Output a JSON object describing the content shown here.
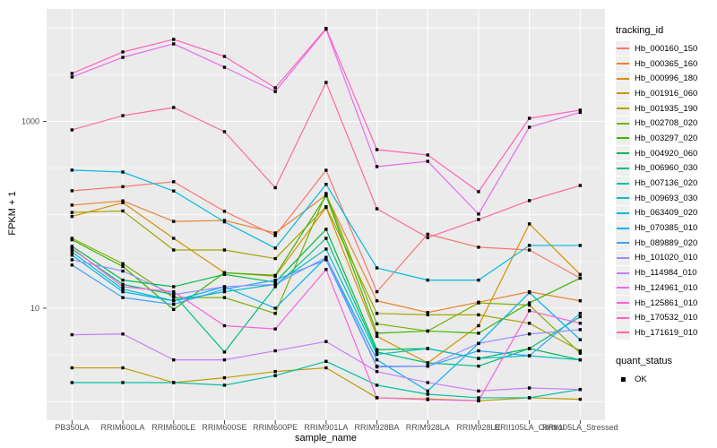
{
  "figure": {
    "background": "#FFFFFF",
    "panel_background": "#EBEBEB",
    "grid_color": "#FFFFFF",
    "tick_color": "#333333",
    "axis_text_color": "#4D4D4D",
    "point_color": "#000000"
  },
  "chart_data": {
    "type": "line",
    "title": "",
    "xlabel": "sample_name",
    "ylabel": "FPKM + 1",
    "y_scale": "log10",
    "ylim": [
      1,
      10000
    ],
    "grid": true,
    "legend_position": "right",
    "y_ticks": [
      {
        "label": "1000",
        "value": 1000
      },
      {
        "label": "10",
        "value": 10
      }
    ],
    "categories": [
      "PB350LA",
      "RRIM600LA",
      "RRIM600LE",
      "RRIM600SE",
      "RRIM600PE",
      "RRIM901LA",
      "RRIM928BA",
      "RRIM928LA",
      "RRIM928LE",
      "RRII105LA_Control",
      "RRII105LA_Stressed"
    ],
    "series": [
      {
        "name": "Hb_000160_150",
        "color": "#F8766D",
        "values": [
          181,
          200,
          226,
          109,
          60,
          300,
          15,
          62,
          45,
          42,
          21
        ]
      },
      {
        "name": "Hb_000365_160",
        "color": "#EA8331",
        "values": [
          127,
          141,
          85,
          87,
          64,
          163,
          12,
          9,
          11.6,
          15,
          12
        ]
      },
      {
        "name": "Hb_000996_180",
        "color": "#D89000",
        "values": [
          96,
          135,
          56,
          24,
          22,
          120,
          5,
          2.6,
          6.5,
          80,
          23
        ]
      },
      {
        "name": "Hb_001916_060",
        "color": "#C09B00",
        "values": [
          2.3,
          2.3,
          1.6,
          1.8,
          2.1,
          2.3,
          1.1,
          1.07,
          1.02,
          1.1,
          1.06
        ]
      },
      {
        "name": "Hb_001935_190",
        "color": "#A3A500",
        "values": [
          106,
          110,
          42,
          42,
          34,
          122,
          8.8,
          8.5,
          8.5,
          6.9,
          3.5
        ]
      },
      {
        "name": "Hb_002708_020",
        "color": "#7CAE00",
        "values": [
          56,
          30,
          13,
          13,
          8.8,
          169,
          6.8,
          5.7,
          11.4,
          10.8,
          3.3
        ]
      },
      {
        "name": "Hb_003297_020",
        "color": "#39B600",
        "values": [
          54,
          28,
          9.7,
          24,
          22.5,
          160,
          5.4,
          5.7,
          5.4,
          11.4,
          21
        ]
      },
      {
        "name": "Hb_004920_060",
        "color": "#00BB4E",
        "values": [
          46,
          20,
          17,
          23,
          19,
          70,
          3.6,
          3.7,
          2.9,
          3.7,
          2.8
        ]
      },
      {
        "name": "Hb_006960_030",
        "color": "#00BF7D",
        "values": [
          43,
          18,
          14,
          3.4,
          17,
          56,
          3.4,
          2.6,
          2.4,
          3.7,
          8.1
        ]
      },
      {
        "name": "Hb_007136_020",
        "color": "#00C1A3",
        "values": [
          1.6,
          1.6,
          1.6,
          1.5,
          1.9,
          2.7,
          1.5,
          1.2,
          1.1,
          1.1,
          1.35
        ]
      },
      {
        "name": "Hb_009693_030",
        "color": "#00BFC4",
        "values": [
          40,
          16,
          12,
          15,
          18,
          43,
          3.2,
          3.7,
          2.9,
          3.1,
          2.8
        ]
      },
      {
        "name": "Hb_063409_020",
        "color": "#00BAE0",
        "values": [
          301,
          287,
          180,
          84,
          44,
          212,
          27,
          20,
          20,
          47,
          47
        ]
      },
      {
        "name": "Hb_070385_010",
        "color": "#00B0F6",
        "values": [
          37,
          15,
          12,
          17,
          10,
          35,
          2.8,
          1.3,
          4.2,
          14.7,
          4.6
        ]
      },
      {
        "name": "Hb_089889_020",
        "color": "#35A2FF",
        "values": [
          29,
          13,
          11,
          16,
          20,
          33,
          2.35,
          2.4,
          3.5,
          3.1,
          8.8
        ]
      },
      {
        "name": "Hb_101020_010",
        "color": "#9590FF",
        "values": [
          33,
          25,
          14,
          17,
          18,
          35,
          2.4,
          2.4,
          4.2,
          5.3,
          5.9
        ]
      },
      {
        "name": "Hb_114984_010",
        "color": "#C77CFF",
        "values": [
          5.2,
          5.3,
          2.8,
          2.8,
          3.5,
          4.4,
          2.1,
          1.6,
          1.3,
          1.4,
          1.35
        ]
      },
      {
        "name": "Hb_124961_010",
        "color": "#E76BF3",
        "values": [
          2985,
          4850,
          6760,
          3800,
          2090,
          9700,
          328,
          374,
          102,
          867,
          1250
        ]
      },
      {
        "name": "Hb_125861_010",
        "color": "#FA62DB",
        "values": [
          44,
          17,
          15,
          6.5,
          6,
          26,
          1.1,
          1.05,
          1.02,
          9.4,
          6.9
        ]
      },
      {
        "name": "Hb_170532_010",
        "color": "#FF62BC",
        "values": [
          3260,
          5540,
          7550,
          4960,
          2290,
          9900,
          499,
          437,
          177,
          1080,
          1320
        ]
      },
      {
        "name": "Hb_171619_010",
        "color": "#FF6A98",
        "values": [
          811,
          1154,
          1409,
          776,
          195,
          2614,
          116,
          57,
          89,
          142,
          206
        ]
      }
    ],
    "legend": {
      "tracking_title": "tracking_id",
      "quant_title": "quant_status",
      "quant_items": [
        {
          "label": "OK"
        }
      ]
    }
  }
}
